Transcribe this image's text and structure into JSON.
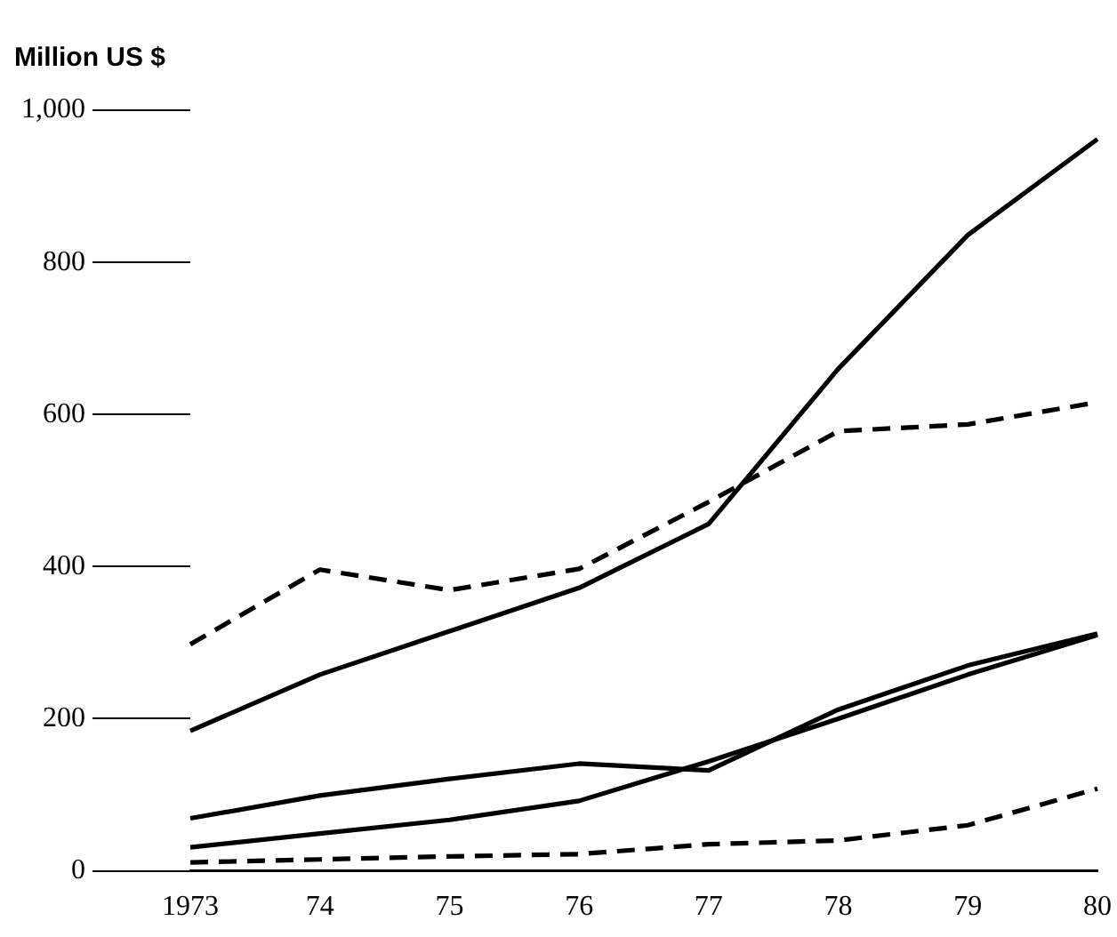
{
  "chart_data": {
    "type": "line",
    "ylabel": "Million US $",
    "categories": [
      "1973",
      "74",
      "75",
      "76",
      "77",
      "78",
      "79",
      "80"
    ],
    "ylim": [
      0,
      1000
    ],
    "yticks": [
      0,
      200,
      400,
      600,
      800,
      {
        "value": 1000,
        "label": "1,000"
      }
    ],
    "grid": false,
    "legend": false,
    "marker": "none",
    "series": [
      {
        "color": "#000000",
        "line_style": "solid",
        "values": [
          184,
          258,
          315,
          372,
          456,
          660,
          836,
          962
        ]
      },
      {
        "color": "#000000",
        "line_style": "dashed",
        "values": [
          298,
          396,
          369,
          397,
          485,
          578,
          587,
          616
        ]
      },
      {
        "color": "#000000",
        "line_style": "solid",
        "values": [
          69,
          99,
          121,
          141,
          132,
          212,
          270,
          312
        ]
      },
      {
        "color": "#000000",
        "line_style": "solid",
        "values": [
          31,
          49,
          67,
          92,
          144,
          200,
          258,
          310
        ]
      },
      {
        "color": "#000000",
        "line_style": "dashed",
        "values": [
          11,
          15,
          19,
          22,
          35,
          40,
          60,
          108
        ]
      }
    ]
  }
}
